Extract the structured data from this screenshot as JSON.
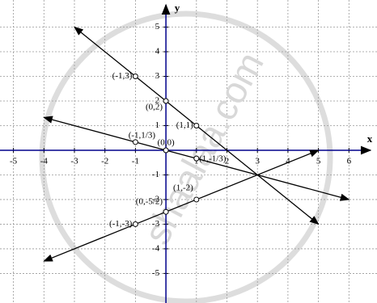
{
  "chart_data": {
    "type": "line",
    "x_label": "x",
    "y_label": "y",
    "xlim": [
      -5.44,
      6.92
    ],
    "ylim": [
      -6.2,
      6.1
    ],
    "xticks": [
      -5,
      -4,
      -3,
      -2,
      -1,
      1,
      2,
      3,
      4,
      5,
      6
    ],
    "yticks": [
      -5,
      -4,
      -3,
      -2,
      -1,
      1,
      2,
      3,
      4,
      5
    ],
    "grid": true,
    "series": [
      {
        "color": "#000000",
        "x": [
          -3,
          -1,
          0,
          1,
          5
        ],
        "values": [
          5,
          3,
          2,
          1,
          -3
        ]
      },
      {
        "color": "#000000",
        "x": [
          -4,
          -1,
          0,
          1,
          6
        ],
        "values": [
          1.333,
          0.333,
          0,
          -0.333,
          -2
        ]
      },
      {
        "color": "#000000",
        "x": [
          -4,
          -1,
          0,
          1,
          5
        ],
        "values": [
          -4.5,
          -3,
          -2.5,
          -2,
          0
        ]
      }
    ],
    "annotations": [
      {
        "text": "(-1,3)",
        "x": -1,
        "y": 3
      },
      {
        "text": "(0,2)",
        "x": 0,
        "y": 2
      },
      {
        "text": "(1,1)",
        "x": 1,
        "y": 1
      },
      {
        "text": "(-1,1/3)",
        "x": -1,
        "y": 0.333
      },
      {
        "text": "(0,0)",
        "x": 0,
        "y": 0
      },
      {
        "text": "(1,-1/3)",
        "x": 1,
        "y": -0.333
      },
      {
        "text": "(1,-2)",
        "x": 1,
        "y": -2
      },
      {
        "text": "(0,-5/2)",
        "x": 0,
        "y": -2.5
      },
      {
        "text": "(-1,-3)",
        "x": -1,
        "y": -3
      }
    ],
    "watermark": "shaalaa.com"
  }
}
